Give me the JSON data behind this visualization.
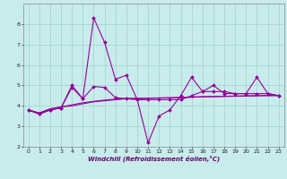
{
  "xlabel": "Windchill (Refroidissement éolien,°C)",
  "x": [
    0,
    1,
    2,
    3,
    4,
    5,
    6,
    7,
    8,
    9,
    10,
    11,
    12,
    13,
    14,
    15,
    16,
    17,
    18,
    19,
    20,
    21,
    22,
    23
  ],
  "line1": [
    3.8,
    3.6,
    3.8,
    3.9,
    5.0,
    4.35,
    8.3,
    7.1,
    5.3,
    5.5,
    4.3,
    2.2,
    3.5,
    3.8,
    4.5,
    5.4,
    4.7,
    5.0,
    4.6,
    4.6,
    4.6,
    5.4,
    4.6,
    4.5
  ],
  "line2": [
    3.8,
    3.6,
    3.8,
    3.9,
    4.9,
    4.35,
    4.95,
    4.9,
    4.4,
    4.35,
    4.3,
    4.3,
    4.3,
    4.3,
    4.3,
    4.5,
    4.7,
    4.7,
    4.7,
    4.6,
    4.6,
    4.6,
    4.6,
    4.5
  ],
  "line3": [
    3.8,
    3.65,
    3.85,
    3.95,
    4.0,
    4.1,
    4.2,
    4.25,
    4.3,
    4.35,
    4.35,
    4.37,
    4.38,
    4.39,
    4.4,
    4.42,
    4.44,
    4.45,
    4.46,
    4.47,
    4.48,
    4.49,
    4.5,
    4.5
  ],
  "line4": [
    3.8,
    3.65,
    3.85,
    3.95,
    4.05,
    4.15,
    4.22,
    4.28,
    4.33,
    4.36,
    4.37,
    4.38,
    4.39,
    4.4,
    4.41,
    4.43,
    4.45,
    4.46,
    4.47,
    4.48,
    4.49,
    4.5,
    4.51,
    4.51
  ],
  "line_color": "#990099",
  "bg_color": "#c8ecec",
  "grid_color": "#aad8d8",
  "ylim": [
    2,
    9
  ],
  "yticks": [
    2,
    3,
    4,
    5,
    6,
    7,
    8
  ],
  "xticks": [
    0,
    1,
    2,
    3,
    4,
    5,
    6,
    7,
    8,
    9,
    10,
    11,
    12,
    13,
    14,
    15,
    16,
    17,
    18,
    19,
    20,
    21,
    22,
    23
  ],
  "tick_fontsize": 4.5,
  "xlabel_fontsize": 5.0
}
